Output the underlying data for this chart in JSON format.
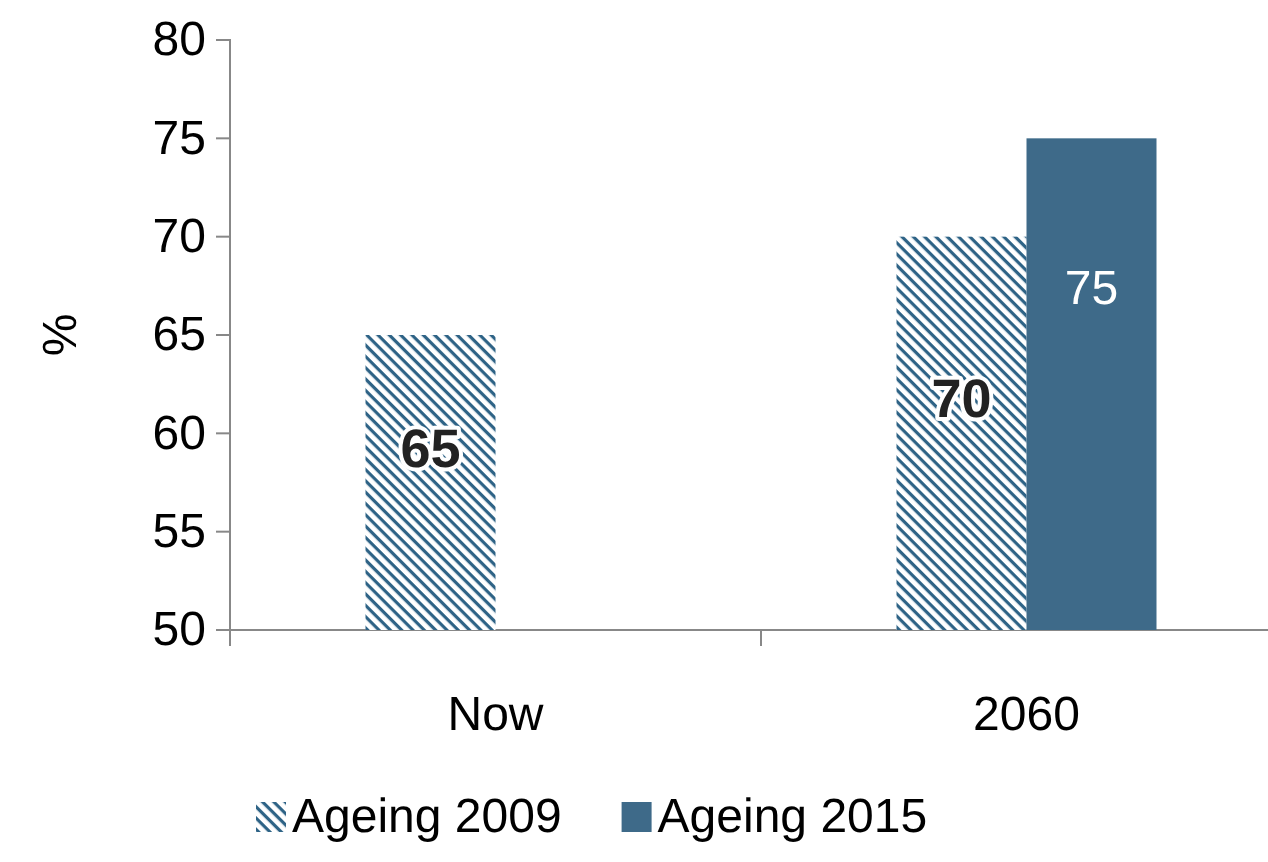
{
  "chart_data": {
    "type": "bar",
    "ylabel": "%",
    "categories": [
      "Now",
      "2060"
    ],
    "series": [
      {
        "name": "Ageing 2009",
        "color": "#2e6386",
        "values": [
          65,
          70
        ]
      },
      {
        "name": "Ageing 2015",
        "color": "#3e6a89",
        "values": [
          null,
          75
        ]
      }
    ],
    "ylim": [
      50,
      80
    ],
    "yticks": [
      50,
      55,
      60,
      65,
      70,
      75,
      80
    ],
    "data_labels": true,
    "legend": "bottom",
    "grid": false
  }
}
